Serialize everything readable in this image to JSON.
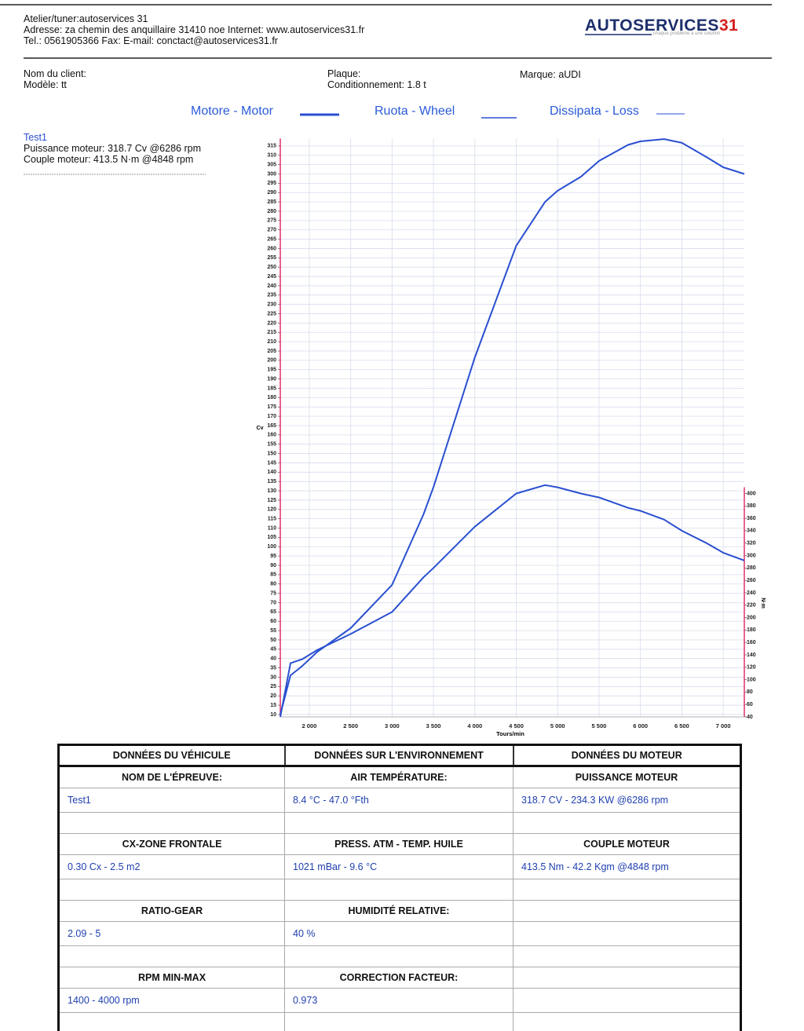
{
  "header": {
    "lines": [
      "Atelier/tuner:autoservices 31",
      "Adresse: za chemin des anquillaire 31410 noe Internet: www.autoservices31.fr",
      "Tel.: 0561905366 Fax:  E-mail: conctact@autoservices31.fr"
    ],
    "logo": {
      "name": "AUTOSERVICES",
      "number": "31",
      "slogan": "chaque problème a une solution"
    }
  },
  "client": {
    "name_label": "Nom du client:",
    "model": "Modèle: tt",
    "plate": "Plaque:",
    "conditioning": "Conditionnement: 1.8 t",
    "brand": "Marque: aUDI"
  },
  "test": {
    "name": "Test1",
    "power": "Puissance moteur: 318.7 Cv @6286 rpm",
    "torque": "Couple moteur: 413.5 N·m @4848 rpm"
  },
  "chart_data": {
    "type": "line",
    "legend": [
      {
        "name": "Motore - Motor",
        "color": "#2a4fd0",
        "width": 3
      },
      {
        "name": "Ruota - Wheel",
        "color": "#2a4fd0",
        "width": 1.6
      },
      {
        "name": "Dissipata - Loss",
        "color": "#2a4fd0",
        "width": 1
      }
    ],
    "xlabel": "Tours/min",
    "ylabel": "Cv",
    "y2label": "N·m",
    "x": [
      1650,
      1773,
      1915,
      2100,
      2500,
      3000,
      3380,
      3500,
      4000,
      4500,
      4848,
      5000,
      5280,
      5500,
      5850,
      6000,
      6286,
      6500,
      6800,
      7000,
      7255
    ],
    "series": [
      {
        "color": "#2a4fd0",
        "axis": "y",
        "values": [
          10,
          31,
          36,
          43.7,
          56.3,
          79.5,
          117.4,
          132,
          201.6,
          261.5,
          285,
          291,
          298.5,
          307,
          315.6,
          317.5,
          318.7,
          316.7,
          309,
          303.6,
          300
        ]
      },
      {
        "color": "#2a4fd0",
        "axis": "y2",
        "values": [
          40,
          126.5,
          133,
          148,
          173.6,
          209,
          265,
          280,
          346.6,
          400,
          413.5,
          410,
          400,
          393.7,
          377,
          372,
          358,
          340,
          320,
          304.6,
          292
        ]
      }
    ],
    "xlim": [
      1650,
      7255
    ],
    "ylim": [
      8.7,
      319
    ],
    "y2lim": [
      40,
      972
    ],
    "xticks": [
      {
        "value": 2000,
        "label": "2 000"
      },
      {
        "value": 2500,
        "label": "2 500"
      },
      {
        "value": 3000,
        "label": "3 000"
      },
      {
        "value": 3500,
        "label": "3 500"
      },
      {
        "value": 4000,
        "label": "4 000"
      },
      {
        "value": 4500,
        "label": "4 500"
      },
      {
        "value": 5000,
        "label": "5 000"
      },
      {
        "value": 5500,
        "label": "5 500"
      },
      {
        "value": 6000,
        "label": "6 000"
      },
      {
        "value": 6500,
        "label": "6 500"
      },
      {
        "value": 7000,
        "label": "7 000"
      }
    ],
    "yticks": [
      10,
      15,
      20,
      25,
      30,
      35,
      40,
      45,
      50,
      55,
      60,
      65,
      70,
      75,
      80,
      85,
      90,
      95,
      100,
      105,
      110,
      115,
      120,
      125,
      130,
      135,
      140,
      145,
      150,
      155,
      160,
      165,
      170,
      175,
      180,
      185,
      190,
      195,
      200,
      205,
      210,
      215,
      220,
      225,
      230,
      235,
      240,
      245,
      250,
      255,
      260,
      265,
      270,
      275,
      280,
      285,
      290,
      295,
      300,
      305,
      310,
      315
    ],
    "y2ticks": [
      40,
      60,
      80,
      100,
      120,
      140,
      160,
      180,
      200,
      220,
      240,
      260,
      280,
      300,
      320,
      340,
      360,
      380,
      400
    ],
    "grid": true,
    "axis_color": "#e0306a"
  },
  "table": {
    "headers": [
      "DONNÉES DU VÉHICULE",
      "DONNÉES SUR L'ENVIRONNEMENT",
      "DONNÉES DU MOTEUR"
    ],
    "groups": [
      [
        {
          "label": "NOM DE L'ÉPREUVE:",
          "value": "Test1"
        },
        {
          "label": "AIR TEMPÉRATURE:",
          "value": "8.4 °C - 47.0 °Fth"
        },
        {
          "label": "PUISSANCE MOTEUR",
          "value": "318.7 CV - 234.3 KW  @6286 rpm"
        }
      ],
      [
        {
          "label": "CX-ZONE FRONTALE",
          "value": "0.30 Cx - 2.5 m2"
        },
        {
          "label": "PRESS. ATM - TEMP. HUILE",
          "value": "1021 mBar - 9.6 °C"
        },
        {
          "label": "COUPLE MOTEUR",
          "value": "413.5 Nm - 42.2 Kgm  @4848 rpm"
        }
      ],
      [
        {
          "label": "RATIO-GEAR",
          "value": "2.09 - 5"
        },
        {
          "label": "HUMIDITÉ RELATIVE:",
          "value": "40 %"
        },
        null
      ],
      [
        {
          "label": "RPM MIN-MAX",
          "value": "1400 - 4000 rpm"
        },
        {
          "label": "CORRECTION FACTEUR:",
          "value": "0.973"
        },
        null
      ]
    ]
  }
}
